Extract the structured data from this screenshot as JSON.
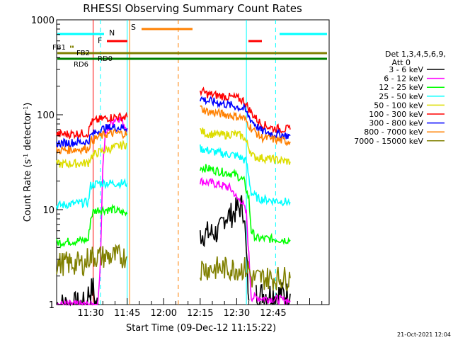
{
  "chart_data": {
    "type": "line",
    "title": "RHESSI Observing Summary Count Rates",
    "xlabel": "Start Time (09-Dec-12 11:15:22)",
    "ylabel_main": "Count Rate (s",
    "ylabel_sup1": "-1",
    "ylabel_mid": " detector",
    "ylabel_sup2": "-1",
    "ylabel_end": ")",
    "yscale": "log",
    "ylim": [
      1,
      1000
    ],
    "xlim_minutes": [
      16,
      128
    ],
    "x_ticks": [
      {
        "m": 30,
        "label": "11:30"
      },
      {
        "m": 45,
        "label": "11:45"
      },
      {
        "m": 60,
        "label": "12:00"
      },
      {
        "m": 75,
        "label": "12:15"
      },
      {
        "m": 90,
        "label": "12:30"
      },
      {
        "m": 105,
        "label": "12:45"
      }
    ],
    "y_ticks": [
      {
        "v": 1,
        "label": "1"
      },
      {
        "v": 10,
        "label": "10"
      },
      {
        "v": 100,
        "label": "100"
      },
      {
        "v": 1000,
        "label": "1000"
      }
    ],
    "legend_header": [
      "Det 1,3,4,5,6,9,",
      "Att 0"
    ],
    "legend_position": "right",
    "series": [
      {
        "name": "3 - 6 keV",
        "color": "#000000",
        "segments": [
          [
            [
              16,
              1
            ],
            [
              28,
              1
            ],
            [
              29,
              1.3
            ],
            [
              31,
              1.5
            ],
            [
              32,
              1
            ],
            [
              33,
              1
            ]
          ],
          [
            [
              75,
              5.5
            ],
            [
              83,
              5.8
            ],
            [
              84,
              7
            ],
            [
              85,
              8.5
            ],
            [
              88,
              8.8
            ],
            [
              90,
              10
            ],
            [
              92,
              11
            ],
            [
              93,
              9.5
            ],
            [
              95,
              1.1
            ]
          ],
          [
            [
              98,
              1.3
            ],
            [
              112,
              1.3
            ]
          ]
        ]
      },
      {
        "name": "6 - 12 keV",
        "color": "#ff00ff",
        "segments": [
          [
            [
              16,
              1
            ],
            [
              33,
              1
            ],
            [
              34,
              3
            ],
            [
              35,
              30
            ],
            [
              36,
              60
            ],
            [
              38,
              80
            ],
            [
              41,
              95
            ],
            [
              43,
              85
            ],
            [
              45,
              70
            ]
          ],
          [
            [
              75,
              20
            ],
            [
              80,
              19
            ],
            [
              84,
              18
            ],
            [
              87,
              17
            ],
            [
              89,
              15
            ],
            [
              90,
              13
            ],
            [
              92,
              12.5
            ],
            [
              94,
              9
            ],
            [
              96,
              1.2
            ],
            [
              112,
              1.1
            ]
          ]
        ]
      },
      {
        "name": "12 - 25 keV",
        "color": "#00ff00",
        "segments": [
          [
            [
              16,
              4.5
            ],
            [
              29,
              4.8
            ],
            [
              30,
              8
            ],
            [
              31,
              9.5
            ],
            [
              33,
              10
            ],
            [
              36,
              10
            ],
            [
              39,
              10
            ],
            [
              42,
              9.5
            ],
            [
              45,
              9
            ]
          ],
          [
            [
              75,
              28
            ],
            [
              80,
              26.5
            ],
            [
              84,
              25
            ],
            [
              88,
              24
            ],
            [
              90,
              23
            ],
            [
              93,
              20
            ],
            [
              95,
              13
            ],
            [
              96,
              6
            ],
            [
              98,
              5
            ],
            [
              112,
              4.8
            ]
          ]
        ]
      },
      {
        "name": "25 - 50 keV",
        "color": "#00ffff",
        "segments": [
          [
            [
              16,
              11
            ],
            [
              29,
              12
            ],
            [
              30,
              18
            ],
            [
              33,
              19
            ],
            [
              37,
              19
            ],
            [
              42,
              19
            ],
            [
              45,
              19
            ]
          ],
          [
            [
              75,
              44
            ],
            [
              80,
              41
            ],
            [
              84,
              39
            ],
            [
              88,
              38
            ],
            [
              90,
              37
            ],
            [
              92,
              35
            ],
            [
              94,
              32
            ],
            [
              96,
              15
            ],
            [
              99,
              13
            ],
            [
              112,
              12
            ]
          ]
        ]
      },
      {
        "name": "50 - 100 keV",
        "color": "#dddd00",
        "segments": [
          [
            [
              16,
              30
            ],
            [
              29,
              31
            ],
            [
              30,
              36
            ],
            [
              33,
              40
            ],
            [
              38,
              44
            ],
            [
              42,
              47
            ],
            [
              45,
              49
            ]
          ],
          [
            [
              75,
              68
            ],
            [
              78,
              63
            ],
            [
              82,
              62
            ],
            [
              85,
              61
            ],
            [
              88,
              63
            ],
            [
              91,
              61
            ],
            [
              93,
              58
            ],
            [
              95,
              45
            ],
            [
              97,
              36
            ],
            [
              112,
              32
            ]
          ]
        ]
      },
      {
        "name": "100 - 300 keV",
        "color": "#ff0000",
        "segments": [
          [
            [
              16,
              62
            ],
            [
              29,
              64
            ],
            [
              30,
              82
            ],
            [
              33,
              88
            ],
            [
              36,
              92
            ],
            [
              40,
              95
            ],
            [
              45,
              94
            ]
          ],
          [
            [
              75,
              180
            ],
            [
              78,
              165
            ],
            [
              82,
              160
            ],
            [
              86,
              155
            ],
            [
              90,
              150
            ],
            [
              93,
              140
            ],
            [
              96,
              105
            ],
            [
              100,
              80
            ],
            [
              105,
              72
            ],
            [
              112,
              70
            ]
          ]
        ]
      },
      {
        "name": "300 - 800 keV",
        "color": "#0000ff",
        "segments": [
          [
            [
              16,
              50
            ],
            [
              29,
              52
            ],
            [
              30,
              60
            ],
            [
              33,
              68
            ],
            [
              36,
              72
            ],
            [
              40,
              74
            ],
            [
              45,
              72
            ]
          ],
          [
            [
              75,
              150
            ],
            [
              78,
              140
            ],
            [
              82,
              135
            ],
            [
              86,
              128
            ],
            [
              90,
              122
            ],
            [
              93,
              115
            ],
            [
              96,
              88
            ],
            [
              100,
              68
            ],
            [
              105,
              63
            ],
            [
              112,
              60
            ]
          ]
        ]
      },
      {
        "name": "800 - 7000 keV",
        "color": "#ff8000",
        "segments": [
          [
            [
              16,
              42
            ],
            [
              29,
              44
            ],
            [
              30,
              52
            ],
            [
              33,
              58
            ],
            [
              36,
              62
            ],
            [
              40,
              64
            ],
            [
              45,
              63
            ]
          ],
          [
            [
              75,
              118
            ],
            [
              78,
              108
            ],
            [
              82,
              104
            ],
            [
              86,
              100
            ],
            [
              90,
              96
            ],
            [
              93,
              92
            ],
            [
              96,
              72
            ],
            [
              100,
              58
            ],
            [
              105,
              55
            ],
            [
              112,
              52
            ]
          ]
        ]
      },
      {
        "name": "7000 - 15000 keV",
        "color": "#808000",
        "segments": [
          [
            [
              16,
              2.7
            ],
            [
              28,
              2.7
            ],
            [
              29,
              3.2
            ],
            [
              45,
              3.2
            ]
          ],
          [
            [
              75,
              2.4
            ],
            [
              95,
              2.4
            ],
            [
              96,
              1.9
            ],
            [
              112,
              1.9
            ]
          ]
        ]
      }
    ],
    "annotations": {
      "markers": [
        {
          "label": "N",
          "color": "#00ffff"
        },
        {
          "label": "S",
          "color": "#ff8000"
        },
        {
          "label": "F",
          "color": "#ff0000"
        },
        {
          "label": "FB1",
          "color": "#808000"
        },
        {
          "label": "FB2",
          "color": "#808000"
        },
        {
          "label": "RD0",
          "color": "#008000"
        },
        {
          "label": "RD6",
          "color": "#008000"
        }
      ],
      "vertical_lines": [
        {
          "m": 31,
          "color": "#ff0000",
          "style": "solid"
        },
        {
          "m": 34,
          "color": "#00ffff",
          "style": "dashed"
        },
        {
          "m": 45,
          "color": "#00ffff",
          "style": "solid"
        },
        {
          "m": 46,
          "color": "#ff8000",
          "style": "solid"
        },
        {
          "m": 66,
          "color": "#ff8000",
          "style": "dashed"
        },
        {
          "m": 94,
          "color": "#00ffff",
          "style": "solid"
        },
        {
          "m": 106,
          "color": "#00ffff",
          "style": "dashed"
        }
      ]
    },
    "grid": false
  },
  "footer_date": "21-Oct-2021 12:04"
}
